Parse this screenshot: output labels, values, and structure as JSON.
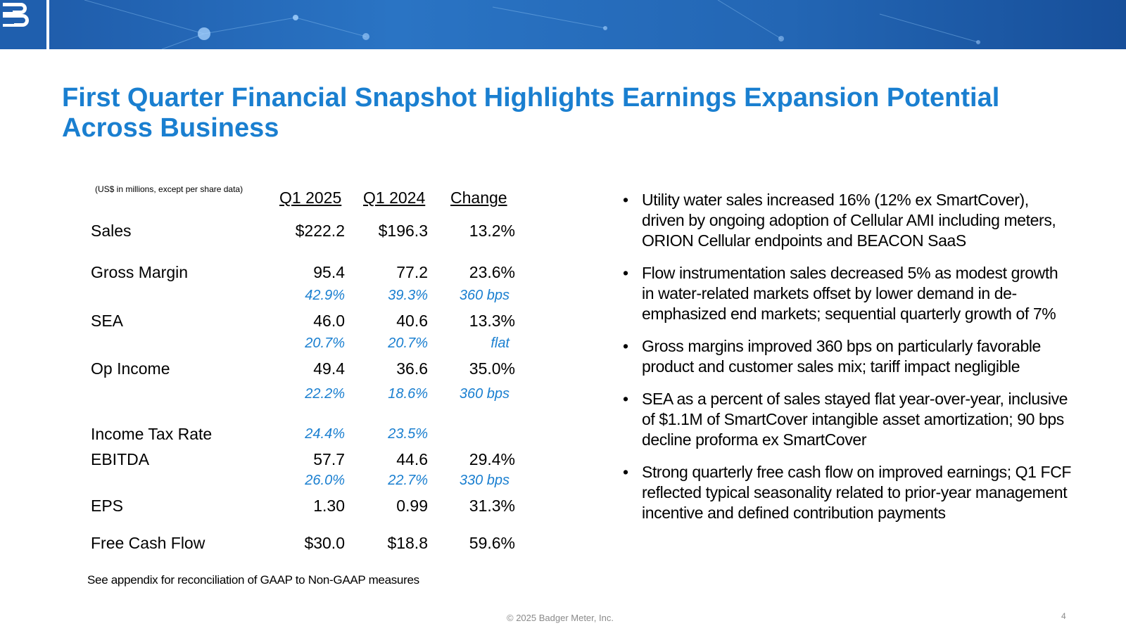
{
  "title": "First Quarter Financial Snapshot Highlights Earnings Expansion Potential Across Business",
  "units_note": "(US$ in millions, except per share data)",
  "columns": [
    "Q1 2025",
    "Q1 2024",
    "Change"
  ],
  "rows": [
    {
      "label": "Sales",
      "values": [
        "$222.2",
        "$196.3",
        "13.2%"
      ]
    },
    {
      "label": "Gross Margin",
      "values": [
        "95.4",
        "77.2",
        "23.6%"
      ],
      "pct": [
        "42.9%",
        "39.3%",
        "360 bps"
      ]
    },
    {
      "label": "SEA",
      "values": [
        "46.0",
        "40.6",
        "13.3%"
      ],
      "pct": [
        "20.7%",
        "20.7%",
        "flat"
      ]
    },
    {
      "label": "Op Income",
      "values": [
        "49.4",
        "36.6",
        "35.0%"
      ],
      "pct": [
        "22.2%",
        "18.6%",
        "360 bps"
      ]
    },
    {
      "label": "Income Tax Rate",
      "pct": [
        "24.4%",
        "23.5%"
      ]
    },
    {
      "label": "EBITDA",
      "values": [
        "57.7",
        "44.6",
        "29.4%"
      ],
      "pct": [
        "26.0%",
        "22.7%",
        "330 bps"
      ]
    },
    {
      "label": "EPS",
      "values": [
        "1.30",
        "0.99",
        "31.3%"
      ]
    },
    {
      "label": "Free Cash Flow",
      "values": [
        "$30.0",
        "$18.8",
        "59.6%"
      ]
    }
  ],
  "bullets": [
    "Utility water sales increased 16% (12% ex SmartCover), driven by ongoing adoption of Cellular AMI including meters, ORION Cellular endpoints and BEACON SaaS",
    "Flow instrumentation sales decreased 5% as modest growth in water-related markets offset by lower demand in de-emphasized end markets; sequential quarterly growth of 7%",
    "Gross margins improved 360 bps on particularly favorable product and customer sales mix; tariff impact negligible",
    "SEA as a percent of sales stayed flat year-over-year, inclusive of $1.1M of SmartCover intangible asset amortization; 90 bps decline proforma ex SmartCover",
    "Strong quarterly free cash flow on improved earnings; Q1 FCF reflected typical seasonality related to prior-year management incentive and defined contribution payments"
  ],
  "footnote": "See appendix for reconciliation of GAAP to Non-GAAP measures",
  "copyright": "© 2025 Badger Meter, Inc.",
  "page_number": "4",
  "colors": {
    "accent": "#1a7fd0",
    "banner": "#1f5fae"
  }
}
